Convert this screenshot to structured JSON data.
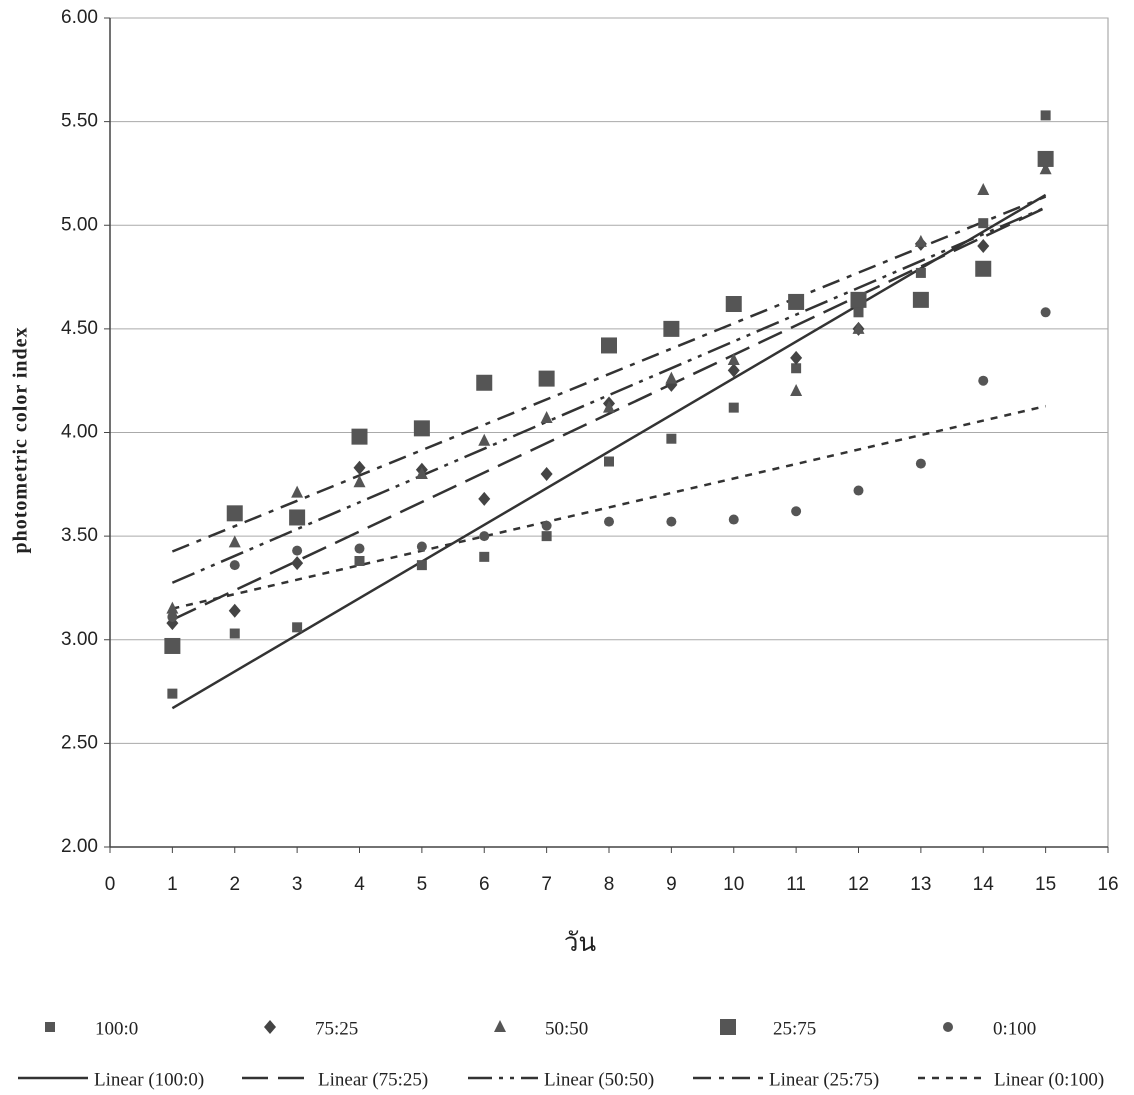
{
  "chart_data": {
    "type": "scatter",
    "x_label": "วัน",
    "y_label": "photometric color index",
    "x": [
      1,
      2,
      3,
      4,
      5,
      6,
      7,
      8,
      9,
      10,
      11,
      12,
      13,
      14,
      15
    ],
    "xlim": [
      0,
      16
    ],
    "xticks": [
      0,
      1,
      2,
      3,
      4,
      5,
      6,
      7,
      8,
      9,
      10,
      11,
      12,
      13,
      14,
      15,
      16
    ],
    "ylim": [
      2,
      6
    ],
    "yticks": [
      {
        "value": 2,
        "label": "2.00"
      },
      {
        "value": 2.5,
        "label": "2.50"
      },
      {
        "value": 3,
        "label": "3.00"
      },
      {
        "value": 3.5,
        "label": "3.50"
      },
      {
        "value": 4,
        "label": "4.00"
      },
      {
        "value": 4.5,
        "label": "4.50"
      },
      {
        "value": 5,
        "label": "5.00"
      },
      {
        "value": 5.5,
        "label": "5.50"
      },
      {
        "value": 6,
        "label": "6.00"
      }
    ],
    "grid": true,
    "series": [
      {
        "name": "100:0",
        "marker": "small-square",
        "color": "#555555",
        "trendline": "Linear (100:0)",
        "dash": "solid",
        "values": [
          2.74,
          3.03,
          3.06,
          3.38,
          3.36,
          3.4,
          3.5,
          3.86,
          3.97,
          4.12,
          4.31,
          4.58,
          4.77,
          5.01,
          5.53
        ]
      },
      {
        "name": "75:25",
        "marker": "diamond",
        "color": "#444444",
        "trendline": "Linear (75:25)",
        "dash": "long-dash",
        "values": [
          3.08,
          3.14,
          3.37,
          3.83,
          3.82,
          3.68,
          3.8,
          4.14,
          4.23,
          4.3,
          4.36,
          4.5,
          4.91,
          4.9,
          5.3
        ]
      },
      {
        "name": "50:50",
        "marker": "triangle",
        "color": "#555555",
        "trendline": "Linear (50:50)",
        "dash": "long-dash-dot-dot",
        "values": [
          3.15,
          3.47,
          3.71,
          3.76,
          3.8,
          3.96,
          4.07,
          4.12,
          4.26,
          4.35,
          4.2,
          4.5,
          4.92,
          5.17,
          5.27
        ]
      },
      {
        "name": "25:75",
        "marker": "large-square",
        "color": "#555555",
        "trendline": "Linear (25:75)",
        "dash": "dash-dot",
        "values": [
          2.97,
          3.61,
          3.59,
          3.98,
          4.02,
          4.24,
          4.26,
          4.42,
          4.5,
          4.62,
          4.63,
          4.64,
          4.64,
          4.79,
          5.32
        ]
      },
      {
        "name": "0:100",
        "marker": "circle",
        "color": "#555555",
        "trendline": "Linear (0:100)",
        "dash": "short-dash",
        "values": [
          3.11,
          3.36,
          3.43,
          3.44,
          3.45,
          3.5,
          3.55,
          3.57,
          3.57,
          3.58,
          3.62,
          3.72,
          3.85,
          4.25,
          4.58
        ]
      }
    ]
  }
}
